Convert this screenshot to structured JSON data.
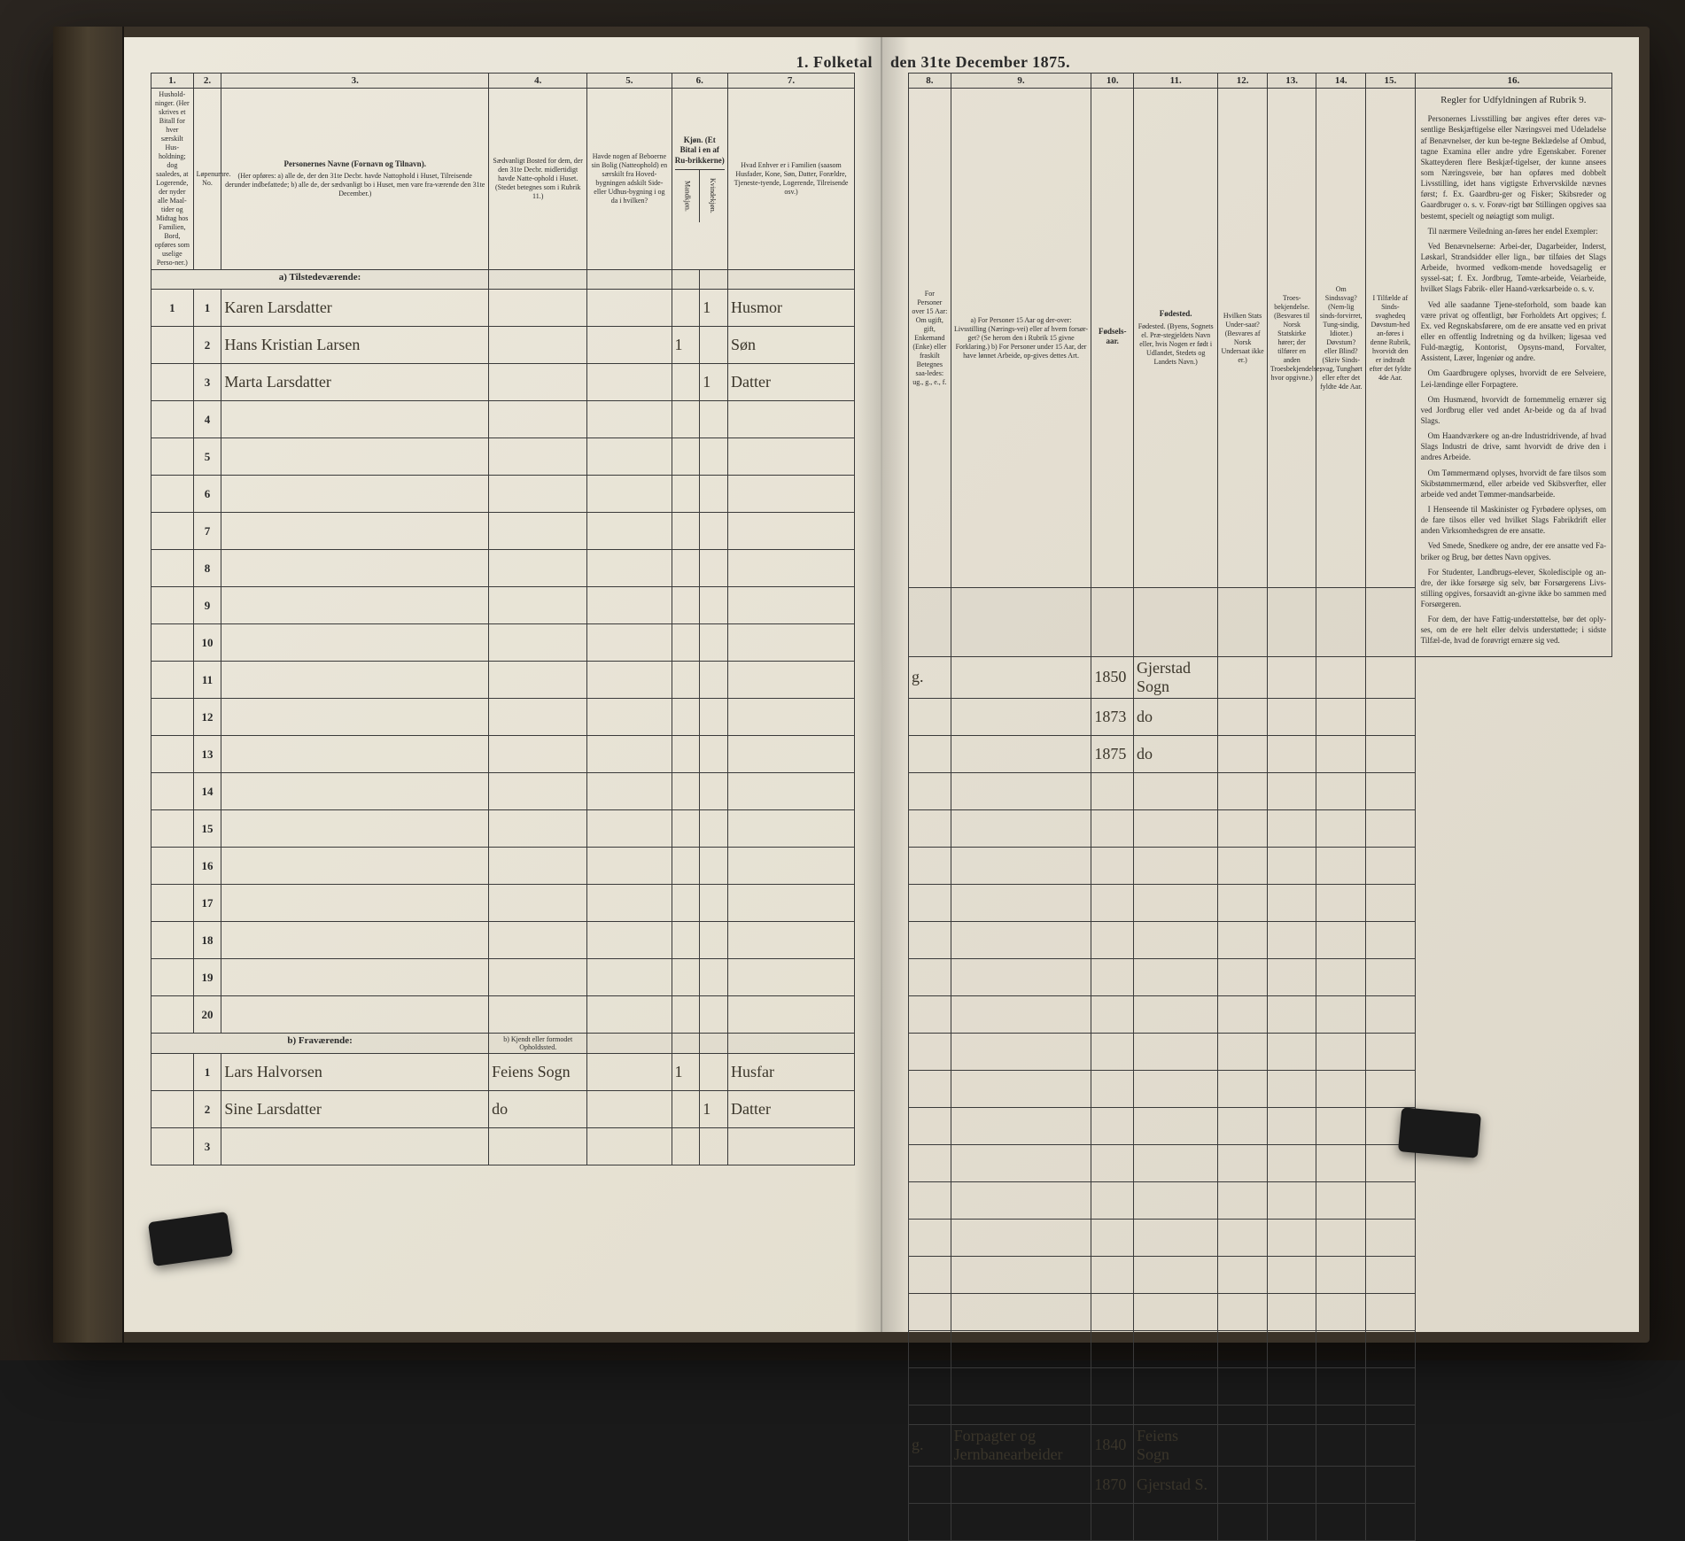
{
  "title_left": "1. Folketal",
  "title_right": "den 31te December 1875.",
  "columns_left": [
    "1.",
    "2.",
    "3.",
    "4.",
    "5.",
    "6.",
    "7."
  ],
  "columns_right": [
    "8.",
    "9.",
    "10.",
    "11.",
    "12.",
    "13.",
    "14.",
    "15.",
    "16."
  ],
  "headers": {
    "c1": "Hushold-\nninger.\n(Her skrives et Bitall for hver særskilt Hus-holdning; dog saaledes, at Logerende, der nyder alle Maal-tider og Midtag hos Familien, Bord, opføres som uselige Perso-ner.)",
    "c2": "Løpenumre. No.",
    "c3": {
      "title": "Personernes Navne (Fornavn og Tilnavn).",
      "sub": "(Her opføres:\na) alle de, der den 31te Decbr. havde Nattophold i Huset, Tilreisende derunder indbefattede;\nb) alle de, der sædvanligt bo i Huset, men vare fra-værende den 31te December.)"
    },
    "c4": "Sædvanligt Bosted for dem, der den 31te Decbr. midlertidigt havde Natte-ophold i Huset. (Stedet betegnes som i Rubrik 11.)",
    "c5": "Havde nogen af Beboerne sin Bolig (Natteophold) en særskilt fra Hoved-bygningen adskilt Side-eller Udhus-bygning i og da i hvilken?",
    "c6": "Kjøn. (Et Bital i en af Ru-brikkerne)",
    "c6a": "Mandkjøn.",
    "c6b": "Kvindekjøn.",
    "c7": "Hvad Enhver er i Familien (saasom Husfader, Kone, Søn, Datter, Forældre, Tjeneste-tyende, Logerende, Tilreisende osv.)",
    "c8": "For Personer over 15 Aar: Om ugift, gift, Enkemand (Enke) eller fraskilt Betegnes saa-ledes: ug., g., e., f.",
    "c9": "a) For Personer 15 Aar og der-over: Livsstilling (Nærings-vei) eller af hvem forsør-get? (Se herom den i Rubrik 15 givne Forklaring.)\nb) For Personer under 15 Aar, der have lønnet Arbeide, op-gives dettes Art.",
    "c10": "Fødsels-aar.",
    "c11": "Fødested.\n(Byens, Sognets el. Præ-stegjeldets Navn eller, hvis Nogen er født i Udlandet, Stedets og Landets Navn.)",
    "c12": "Hvilken Stats Under-saat?\n(Besvares af Norsk Undersaat ikke er.)",
    "c13": "Troes-bekjendelse.\n(Besvares til Norsk Statskirke hører; der tilfører en anden Troesbekjendelse; hvor opgivne.)",
    "c14": "Om Sindssvag? (Nem-lig sinds-forvirret, Tung-sindig, Idioter.) Døvstum? eller Blind? (Skriv Sinds-svag, Tunghørt eller efter det fyldte 4de Aar.",
    "c15": "I Tilfælde af Sinds-svaghedeq Døvstum-hed an-føres i denne Rubrik, hvorvidt den er indtradt efter det fyldte 4de Aar.",
    "c16": "Regler for Udfyldningen af Rubrik 9."
  },
  "section_a": "a) Tilstedeværende:",
  "section_b": "b) Fraværende:",
  "section_b_note": "b) Kjendt eller formodet Opholdssted.",
  "rows_a": [
    {
      "no": "1",
      "person": "1",
      "name": "Karen Larsdatter",
      "c6b": "1",
      "c7": "Husmor",
      "c8": "g.",
      "c10": "1850",
      "c11": "Gjerstad Sogn"
    },
    {
      "no": "",
      "person": "2",
      "name": "Hans Kristian Larsen",
      "c6a": "1",
      "c7": "Søn",
      "c10": "1873",
      "c11": "do"
    },
    {
      "no": "",
      "person": "3",
      "name": "Marta Larsdatter",
      "c6b": "1",
      "c7": "Datter",
      "c10": "1875",
      "c11": "do"
    }
  ],
  "empty_a_rows": [
    "4",
    "5",
    "6",
    "7",
    "8",
    "9",
    "10",
    "11",
    "12",
    "13",
    "14",
    "15",
    "16",
    "17",
    "18",
    "19",
    "20"
  ],
  "rows_b": [
    {
      "person": "1",
      "name": "Lars Halvorsen",
      "c4": "Feiens Sogn",
      "c6a": "1",
      "c7": "Husfar",
      "c8": "g.",
      "c9": "Forpagter og Jernbanearbeider",
      "c10": "1840",
      "c11": "Feiens Sogn"
    },
    {
      "person": "2",
      "name": "Sine Larsdatter",
      "c4": "do",
      "c6b": "1",
      "c7": "Datter",
      "c10": "1870",
      "c11": "Gjerstad S."
    }
  ],
  "empty_b_rows": [
    "3"
  ],
  "instructions": {
    "title": "Regler for Udfyldningen af Rubrik 9.",
    "paras": [
      "Personernes Livsstilling bør angives efter deres væ-sentlige Beskjæftigelse eller Næringsvei med Udeladelse af Benævnelser, der kun be-tegne Beklædelse af Ombud, tagne Examina eller andre ydre Egenskaber. Forener Skatteyderen flere Beskjæf-tigelser, der kunne ansees som Næringsveie, bør han opføres med dobbelt Livsstilling, idet hans vigtigste Erhvervskilde nævnes først; f. Ex. Gaardbru-ger og Fisker; Skibsreder og Gaardbruger o. s. v. Forøv-rigt bør Stillingen opgives saa bestemt, specielt og nøiagtigt som muligt.",
      "Til nærmere Veiledning an-føres her endel Exempler:",
      "Ved Benævnelserne: Arbei-der, Dagarbeider, Inderst, Løskarl, Strandsidder eller lign., bør tilføies det Slags Arbeide, hvormed vedkom-mende hovedsagelig er syssel-sat; f. Ex. Jordbrug, Tømte-arbeide, Veiarbeide, hvilket Slags Fabrik- eller Haand-værksarbeide o. s. v.",
      "Ved alle saadanne Tjene-steforhold, som baade kan være privat og offentligt, bør Forholdets Art opgives; f. Ex. ved Regnskabsførere, om de ere ansatte ved en privat eller en offentlig Indretning og da hvilken; ligesaa ved Fuld-mægtig, Kontorist, Opsyns-mand, Forvalter, Assistent, Lærer, Ingeniør og andre.",
      "Om Gaardbrugere oplyses, hvorvidt de ere Selveiere, Lei-lændinge eller Forpagtere.",
      "Om Husmænd, hvorvidt de fornemmelig ernærer sig ved Jordbrug eller ved andet Ar-beide og da af hvad Slags.",
      "Om Haandværkere og an-dre Industridrivende, af hvad Slags Industri de drive, samt hvorvidt de drive den i andres Arbeide.",
      "Om Tømmermænd oplyses, hvorvidt de fare tilsos som Skibstømmermænd, eller arbeide ved Skibsverfter, eller arbeide ved andet Tømmer-mandsarbeide.",
      "I Henseende til Maskinister og Fyrbødere oplyses, om de fare tilsos eller ved hvilket Slags Fabrikdrift eller anden Virksomhedsgren de ere ansatte.",
      "Ved Smede, Snedkere og andre, der ere ansatte ved Fa-briker og Brug, bør dettes Navn opgives.",
      "For Studenter, Landbrugs-elever, Skoledisciple og an-dre, der ikke forsørge sig selv, bør Forsørgerens Livs-stilling opgives, forsaavidt an-givne ikke bo sammen med Forsørgeren.",
      "For dem, der have Fattig-understøttelse, bør det oply-ses, om de ere helt eller delvis understøttede; i sidste Tilfæl-de, hvad de forøvrigt ernære sig ved."
    ]
  }
}
